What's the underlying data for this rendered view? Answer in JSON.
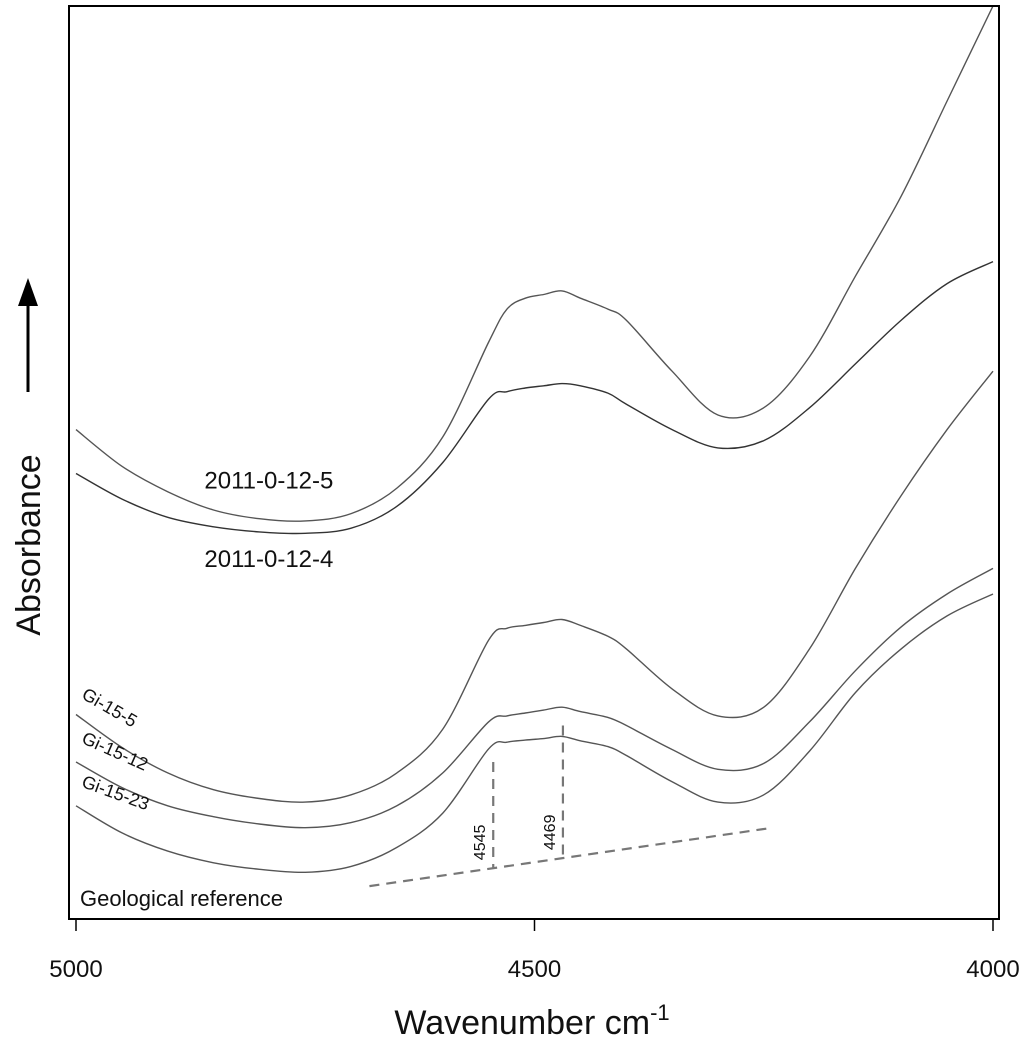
{
  "chart_data": {
    "type": "line",
    "xlabel": "Wavenumber cm",
    "xlabel_superscript": "-1",
    "ylabel": "Absorbance",
    "xlim": [
      5000,
      4000
    ],
    "x_ticks": [
      "5000",
      "4500",
      "4000"
    ],
    "grid": false,
    "series": [
      {
        "name": "2011-0-12-5",
        "x": [
          5000,
          4950,
          4900,
          4850,
          4800,
          4750,
          4700,
          4650,
          4600,
          4550,
          4530,
          4510,
          4490,
          4470,
          4450,
          4420,
          4400,
          4350,
          4300,
          4250,
          4200,
          4150,
          4100,
          4050,
          4000
        ],
        "y": [
          0.67,
          0.62,
          0.585,
          0.56,
          0.548,
          0.545,
          0.555,
          0.59,
          0.66,
          0.79,
          0.835,
          0.85,
          0.855,
          0.86,
          0.85,
          0.835,
          0.82,
          0.75,
          0.69,
          0.7,
          0.77,
          0.88,
          0.99,
          1.12,
          1.25
        ]
      },
      {
        "name": "2011-0-12-4",
        "x": [
          5000,
          4950,
          4900,
          4850,
          4800,
          4750,
          4700,
          4650,
          4600,
          4550,
          4530,
          4510,
          4490,
          4470,
          4450,
          4420,
          4400,
          4350,
          4300,
          4250,
          4200,
          4150,
          4100,
          4050,
          4000
        ],
        "y": [
          0.61,
          0.575,
          0.55,
          0.537,
          0.53,
          0.528,
          0.535,
          0.565,
          0.625,
          0.712,
          0.722,
          0.727,
          0.73,
          0.733,
          0.73,
          0.72,
          0.705,
          0.67,
          0.645,
          0.655,
          0.7,
          0.76,
          0.82,
          0.87,
          0.9
        ]
      },
      {
        "name": "Gi-15-5",
        "x": [
          5000,
          4950,
          4900,
          4850,
          4800,
          4750,
          4700,
          4650,
          4600,
          4550,
          4530,
          4510,
          4490,
          4470,
          4450,
          4420,
          4400,
          4350,
          4300,
          4250,
          4200,
          4150,
          4100,
          4050,
          4000
        ],
        "y": [
          0.28,
          0.235,
          0.2,
          0.177,
          0.165,
          0.16,
          0.17,
          0.2,
          0.26,
          0.382,
          0.398,
          0.402,
          0.406,
          0.41,
          0.402,
          0.387,
          0.37,
          0.315,
          0.278,
          0.29,
          0.37,
          0.48,
          0.58,
          0.67,
          0.75
        ]
      },
      {
        "name": "Gi-15-12",
        "x": [
          5000,
          4950,
          4900,
          4850,
          4800,
          4750,
          4700,
          4650,
          4600,
          4550,
          4530,
          4510,
          4490,
          4470,
          4450,
          4420,
          4400,
          4350,
          4300,
          4250,
          4200,
          4150,
          4100,
          4050,
          4000
        ],
        "y": [
          0.215,
          0.18,
          0.155,
          0.14,
          0.13,
          0.125,
          0.132,
          0.155,
          0.2,
          0.27,
          0.278,
          0.282,
          0.286,
          0.29,
          0.284,
          0.276,
          0.265,
          0.232,
          0.205,
          0.213,
          0.27,
          0.34,
          0.4,
          0.445,
          0.48
        ]
      },
      {
        "name": "Gi-15-23",
        "x": [
          5000,
          4950,
          4900,
          4850,
          4800,
          4750,
          4700,
          4650,
          4600,
          4550,
          4530,
          4510,
          4490,
          4470,
          4450,
          4420,
          4400,
          4350,
          4300,
          4250,
          4200,
          4150,
          4100,
          4050,
          4000
        ],
        "y": [
          0.155,
          0.118,
          0.093,
          0.077,
          0.068,
          0.064,
          0.072,
          0.098,
          0.145,
          0.233,
          0.242,
          0.245,
          0.247,
          0.25,
          0.244,
          0.236,
          0.224,
          0.188,
          0.16,
          0.17,
          0.23,
          0.31,
          0.37,
          0.415,
          0.445
        ]
      }
    ],
    "annotations": {
      "reference_label": "Geological reference",
      "baseline": {
        "x": [
          4680,
          4240
        ],
        "y": [
          0.045,
          0.125
        ]
      },
      "markers": [
        {
          "label": "4545",
          "x": 4545,
          "y_top": 0.215
        },
        {
          "label": "4469",
          "x": 4469,
          "y_top": 0.265
        }
      ]
    }
  }
}
